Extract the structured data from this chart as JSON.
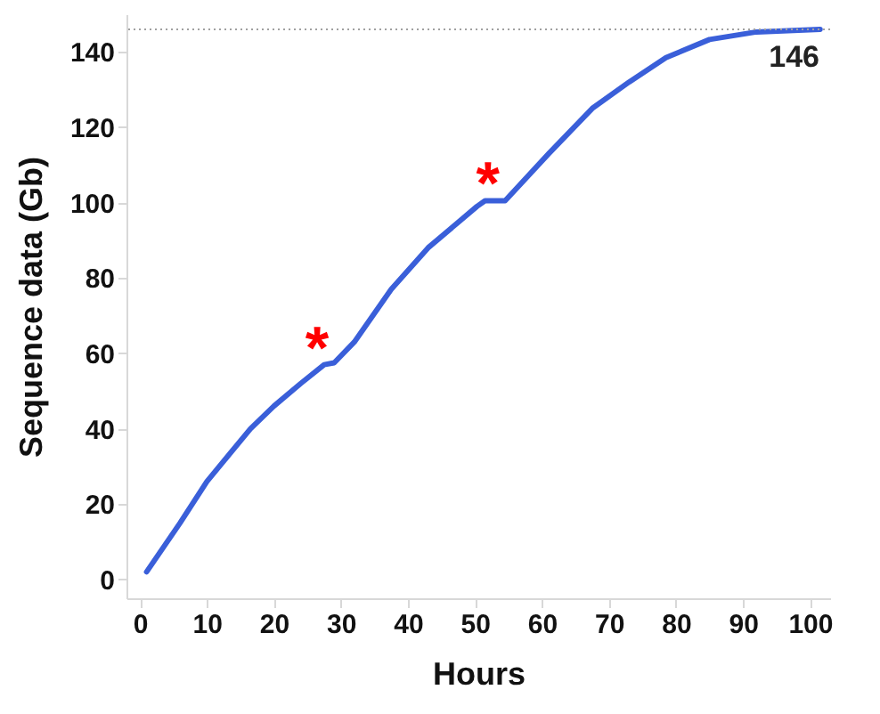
{
  "chart_data": {
    "type": "line",
    "xlabel": "Hours",
    "ylabel": "Sequence data (Gb)",
    "xlim": [
      -2,
      103
    ],
    "xticks": [
      0,
      10,
      20,
      30,
      40,
      50,
      60,
      70,
      80,
      90,
      100
    ],
    "ylim": [
      -5,
      150
    ],
    "yticks": [
      0,
      20,
      40,
      60,
      80,
      100,
      120,
      140
    ],
    "grid": false,
    "marker": "none",
    "line_style": "solid",
    "series": [
      {
        "color": "#3a5fd9",
        "x": [
          1,
          6,
          10,
          16.5,
          20,
          24,
          27.5,
          29,
          32,
          37.5,
          43,
          50.3,
          51.5,
          54.5,
          61,
          67.5,
          73,
          78.5,
          85,
          92,
          101.5
        ],
        "values": [
          2,
          15,
          26,
          40,
          46,
          52,
          57,
          57.5,
          63,
          77,
          88,
          99,
          100.5,
          100.5,
          113,
          125,
          132,
          138.5,
          143.3,
          145.3,
          146
        ]
      }
    ],
    "ref_lines": [
      {
        "axis": "y",
        "value": 146,
        "label": "146",
        "color": "#a0a0a0",
        "line_style": "dotted"
      }
    ],
    "annotations": [
      {
        "text": "*",
        "x": 27.5,
        "y": 57
      },
      {
        "text": "*",
        "x": 53,
        "y": 100.5
      }
    ]
  }
}
